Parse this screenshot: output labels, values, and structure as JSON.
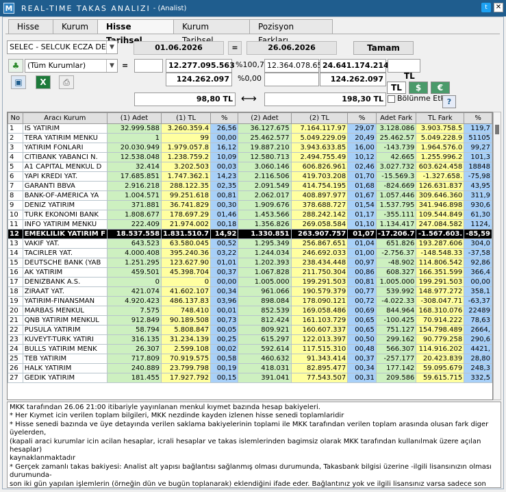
{
  "window": {
    "logo": "M",
    "title": "REAL-TIME TAKAS ANALIZI",
    "subtitle": "- (Analist)",
    "twitter": "t",
    "close": "✕"
  },
  "tabs": [
    {
      "label": "Hisse"
    },
    {
      "label": "Kurum"
    },
    {
      "label": "Hisse Tarihsel"
    },
    {
      "label": "Kurum Tarihsel"
    },
    {
      "label": "Pozisyon Farkları"
    }
  ],
  "controls": {
    "stock_select": "SELEC - SELCUK ECZA DEF",
    "date_from": "01.06.2026",
    "eq": "=",
    "date_to": "26.06.2026",
    "ok": "Tamam",
    "inst_select": "(Tüm Kurumlar)",
    "eq2": "=",
    "v1": "12.277.095.563",
    "p1": "%100,71",
    "v2": "12.364.078.652",
    "v3": "24.641.174.214",
    "w1": "124.262.097",
    "p2": "%0,00",
    "w3": "124.262.097",
    "price1": "98,80 TL",
    "arrow": "⟷",
    "price2": "198,30 TL",
    "tl_label": "TL",
    "cur_tl": "TL",
    "cur_usd": "$",
    "cur_eur": "€",
    "split_label": "Bölünme Etkisi",
    "help": "?"
  },
  "table": {
    "headers": [
      "No",
      "Aracı Kurum",
      "(1) Adet",
      "(1) TL",
      "%",
      "(2) Adet",
      "(2) TL",
      "%",
      "Adet Fark",
      "TL Fark",
      "%"
    ],
    "rows": [
      [
        "1",
        "IS YATIRIM",
        "32.999.588",
        "3.260.359.4",
        "26,56",
        "36.127.675",
        "7.164.117.97",
        "29,07",
        "3.128.086",
        "3.903.758.5",
        "119,7"
      ],
      [
        "2",
        "TERA YATIRIM MENKU",
        "1",
        "99",
        "00,00",
        "25.462.577",
        "5.049.229.09",
        "20,49",
        "25.462.57",
        "5.049.228.9",
        "51105"
      ],
      [
        "3",
        "YATIRIM FONLARI",
        "20.030.949",
        "1.979.057.8",
        "16,12",
        "19.887.210",
        "3.943.633.85",
        "16,00",
        "-143.739",
        "1.964.576.0",
        "99,27"
      ],
      [
        "4",
        "CITIBANK YABANCI N.",
        "12.538.048",
        "1.238.759.2",
        "10,09",
        "12.580.713",
        "2.494.755.49",
        "10,12",
        "42.665",
        "1.255.996.2",
        "101,3"
      ],
      [
        "5",
        "A1 CAPITAL MENKUL D",
        "32.414",
        "3.202.503",
        "00,03",
        "3.060.146",
        "606.826.961",
        "02,46",
        "3.027.732",
        "603.624.458",
        "18848"
      ],
      [
        "6",
        "YAPI KREDI YAT.",
        "17.685.851",
        "1.747.362.1",
        "14,23",
        "2.116.506",
        "419.703.208",
        "01,70",
        "-15.569.3",
        "-1.327.658.",
        "-75,98"
      ],
      [
        "7",
        "GARANTI BBVA",
        "2.916.218",
        "288.122.35",
        "02,35",
        "2.091.549",
        "414.754.195",
        "01,68",
        "-824.669",
        "126.631.837",
        "43,95"
      ],
      [
        "8",
        "BANK-OF-AMERICA YA",
        "1.004.571",
        "99.251.618",
        "00,81",
        "2.062.017",
        "408.897.977",
        "01,67",
        "1.057.446",
        "309.646.360",
        "311,9"
      ],
      [
        "9",
        "DENIZ YATIRIM",
        "371.881",
        "36.741.829",
        "00,30",
        "1.909.676",
        "378.688.727",
        "01,54",
        "1.537.795",
        "341.946.898",
        "930,6"
      ],
      [
        "10",
        "TURK EKONOMI BANK",
        "1.808.677",
        "178.697.29",
        "01,46",
        "1.453.566",
        "288.242.142",
        "01,17",
        "-355.111",
        "109.544.849",
        "61,30"
      ],
      [
        "11",
        "INFO YATIRIM MENKU",
        "222.409",
        "21.974.002",
        "00,18",
        "1.356.826",
        "269.058.584",
        "01,10",
        "1.134.417",
        "247.084.582",
        "1124,"
      ],
      [
        "12",
        "EMEKLILIK YATIRIM F",
        "18.537.558",
        "1.831.510.7",
        "14,92",
        "1.330.851",
        "263.907.757",
        "01,07",
        "-17.206.7",
        "-1.567.603.",
        "-85,59"
      ],
      [
        "13",
        "VAKIF YAT.",
        "643.523",
        "63.580.045",
        "00,52",
        "1.295.349",
        "256.867.651",
        "01,04",
        "651.826",
        "193.287.606",
        "304,0"
      ],
      [
        "14",
        "TACIRLER YAT.",
        "4.000.408",
        "395.240.36",
        "03,22",
        "1.244.034",
        "246.692.033",
        "01,00",
        "-2.756.37",
        "-148.548.33",
        "-37,58"
      ],
      [
        "15",
        "DEUTSCHE BANK (YAB",
        "1.251.295",
        "123.627.90",
        "01,01",
        "1.202.393",
        "238.434.448",
        "00,97",
        "-48.902",
        "114.806.542",
        "92,86"
      ],
      [
        "16",
        "AK YATIRIM",
        "459.501",
        "45.398.704",
        "00,37",
        "1.067.828",
        "211.750.304",
        "00,86",
        "608.327",
        "166.351.599",
        "366,4"
      ],
      [
        "17",
        "DENIZBANK A.S.",
        "0",
        "0",
        "00,00",
        "1.005.000",
        "199.291.503",
        "00,81",
        "1.005.000",
        "199.291.503",
        "00,00"
      ],
      [
        "18",
        "ZIRAAT YAT.",
        "421.074",
        "41.602.107",
        "00,34",
        "961.066",
        "190.579.379",
        "00,77",
        "539.992",
        "148.977.272",
        "358,1"
      ],
      [
        "19",
        "YATIRIM-FINANSMAN",
        "4.920.423",
        "486.137.83",
        "03,96",
        "898.084",
        "178.090.121",
        "00,72",
        "-4.022.33",
        "-308.047.71",
        "-63,37"
      ],
      [
        "20",
        "MARBAS MENKUL",
        "7.575",
        "748.410",
        "00,01",
        "852.539",
        "169.058.486",
        "00,69",
        "844.964",
        "168.310.076",
        "22489"
      ],
      [
        "21",
        "QNB YATIRIM MENKUL",
        "912.849",
        "90.189.508",
        "00,73",
        "812.424",
        "161.103.729",
        "00,65",
        "-100.425",
        "70.914.222",
        "78,63"
      ],
      [
        "22",
        "PUSULA YATIRIM",
        "58.794",
        "5.808.847",
        "00,05",
        "809.921",
        "160.607.337",
        "00,65",
        "751.127",
        "154.798.489",
        "2664,"
      ],
      [
        "23",
        "KUVEYT-TURK YATIRI",
        "316.135",
        "31.234.139",
        "00,25",
        "615.297",
        "122.013.397",
        "00,50",
        "299.162",
        "90.779.258",
        "290,6"
      ],
      [
        "24",
        "BULLS YATIRIM MENK",
        "26.307",
        "2.599.108",
        "00,02",
        "592.614",
        "117.515.310",
        "00,48",
        "566.307",
        "114.916.202",
        "4421,"
      ],
      [
        "25",
        "TEB YATIRIM",
        "717.809",
        "70.919.575",
        "00,58",
        "460.632",
        "91.343.414",
        "00,37",
        "-257.177",
        "20.423.839",
        "28,80"
      ],
      [
        "26",
        "HALK YATIRIM",
        "240.889",
        "23.799.798",
        "00,19",
        "418.031",
        "82.895.477",
        "00,34",
        "177.142",
        "59.095.679",
        "248,3"
      ],
      [
        "27",
        "GEDIK YATIRIM",
        "181.455",
        "17.927.792",
        "00,15",
        "391.041",
        "77.543.507",
        "00,31",
        "209.586",
        "59.615.715",
        "332,5"
      ]
    ]
  },
  "notes": [
    "MKK tarafından 26.06 21:00 itibariyle yayınlanan menkul kıymet bazında hesap bakiyeleri.",
    "* Her Kıymet icin verilen toplam bilgileri, MKK nezdinde kayden izlenen hisse senedi toplamlaridir",
    "* Hisse senedi bazında ve üye detayında verilen saklama bakiyelerinin toplami ile MKK tarafından verilen toplam arasında olusan fark diger üyelerden,",
    "(kapali araci kurumlar icin acilan hesaplar, icrali hesaplar ve takas islemlerinden bagimsiz olarak MKK tarafından kullanılmak üzere açılan hesaplar)",
    "kaynaklanmaktadır",
    "* Gerçek zamanlı takas bakiyesi: Analist alt yapısı bağlantısı sağlanmış olması durumunda, Takasbank bilgisi üzerine -ilgili lisansınızın olması durumunda-",
    "son iki gün yapılan işlemlerin (örneğin dün ve bugün toplanarak) eklendiğini ifade eder. Bağlantınız yok ve ilgili lisansınız varsa sadece son gün (örneğin",
    "bugün) yapılan işlemlerin ilave edildiğini ifade eder. Lisansınız yoksa Takasbank verisi üzerine başka bir bilgi eklenmez.",
    "* Sadece Takasbank bakiyeleri üzerinden karşılaştırma yapılmak istendiğinde Hızlı Takas menüsü kullanılmalıdır."
  ]
}
